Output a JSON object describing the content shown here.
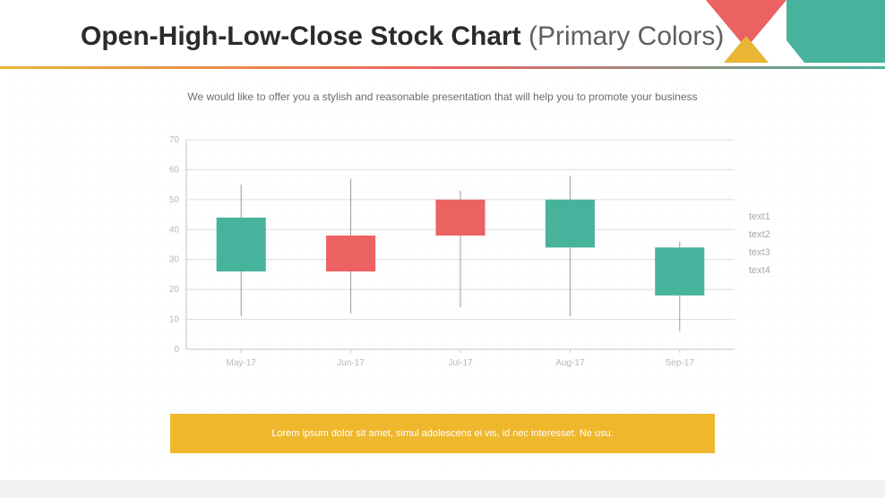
{
  "title": {
    "main": "Open-High-Low-Close Stock Chart ",
    "sub": "(Primary Colors)",
    "main_color": "#2b2b2b",
    "sub_color": "#5f5f5f",
    "fontsize": 30
  },
  "subtitle": {
    "text": "We would like to offer you a stylish and reasonable presentation that will help you to promote your business",
    "color": "#6b6b6b",
    "fontsize": 12
  },
  "decor": {
    "teal_rect": "#47b39c",
    "red_triangle": "#ec6161",
    "yellow_triangle": "#e8b633",
    "divider_gradient": [
      "#e8b633",
      "#ec6161",
      "#47b39c"
    ]
  },
  "chart": {
    "type": "ohlc-candlestick",
    "ylim": [
      0,
      70
    ],
    "ytick_step": 10,
    "yticks": [
      0,
      10,
      20,
      30,
      40,
      50,
      60,
      70
    ],
    "categories": [
      "May-17",
      "Jun-17",
      "Jul-17",
      "Aug-17",
      "Sep-17"
    ],
    "data": [
      {
        "open": 26,
        "high": 55,
        "low": 11,
        "close": 44,
        "color": "#47b39c"
      },
      {
        "open": 26,
        "high": 57,
        "low": 12,
        "close": 38,
        "color": "#ec6161"
      },
      {
        "open": 38,
        "high": 53,
        "low": 14,
        "close": 50,
        "color": "#ec6161"
      },
      {
        "open": 34,
        "high": 58,
        "low": 11,
        "close": 50,
        "color": "#47b39c"
      },
      {
        "open": 18,
        "high": 36,
        "low": 6,
        "close": 34,
        "color": "#47b39c"
      }
    ],
    "axis_label_color": "#b9b9b9",
    "axis_label_fontsize": 10,
    "gridline_color": "#dcdcdc",
    "axis_line_color": "#c6c6c6",
    "candle_width_ratio": 0.45,
    "wick_color": "#9a9a9a",
    "background": "#ffffff"
  },
  "legend": {
    "items": [
      "text1",
      "text2",
      "text3",
      "text4"
    ],
    "color": "#a8a8a8",
    "fontsize": 11
  },
  "footer": {
    "text": "Lorem ipsum dolor sit amet, simul adolescens ei vis, id nec interesset. Ne usu.",
    "bg": "#efb72c",
    "text_color": "#ffffff",
    "fontsize": 11
  },
  "bg_grid_color": "#efefef"
}
